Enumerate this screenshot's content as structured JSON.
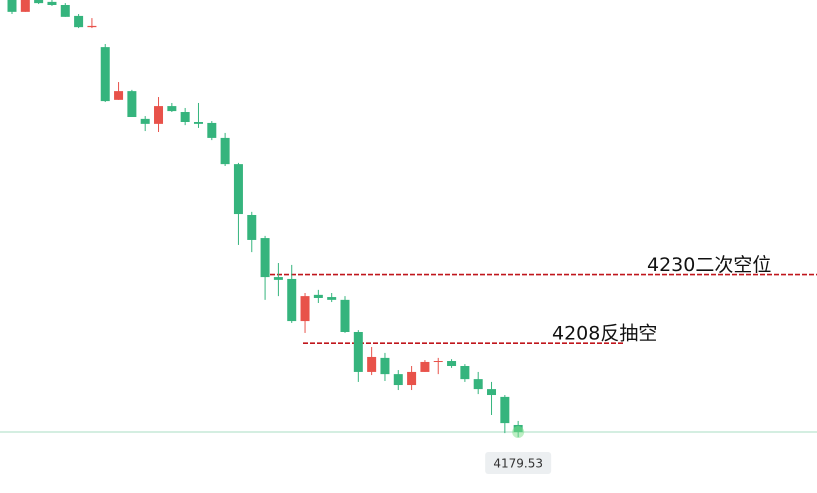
{
  "chart_data": {
    "type": "candlestick",
    "up_color": "#e8524a",
    "down_color": "#35b47d",
    "ylim": [
      4160,
      4318
    ],
    "open": [
      4318,
      4314.2,
      4318,
      4317.4,
      4316.4,
      4312.9,
      4309.3,
      4302.9,
      4286,
      4288.8,
      4279.9,
      4278.3,
      4284,
      4282.1,
      4278.9,
      4278.6,
      4273.8,
      4265.4,
      4249.1,
      4241.7,
      4229.2,
      4228.6,
      4215.1,
      4223.5,
      4222.8,
      4221.9,
      4211.6,
      4198.8,
      4203.3,
      4198.1,
      4194.6,
      4198.8,
      4202,
      4202.3,
      4200.7,
      4196.5,
      4193.3,
      4190.8,
      4181.8
    ],
    "high": [
      4318,
      4318,
      4318,
      4318,
      4317,
      4313.5,
      4312.2,
      4303.9,
      4291.7,
      4289.2,
      4280.8,
      4286.9,
      4285,
      4283.4,
      4285,
      4279.2,
      4275.4,
      4265.8,
      4250.1,
      4242.4,
      4233.7,
      4233.1,
      4224.1,
      4225.1,
      4224.1,
      4223.1,
      4212.2,
      4206.8,
      4204.9,
      4199.4,
      4200.7,
      4202.6,
      4203.3,
      4202.9,
      4201.3,
      4198.8,
      4195.6,
      4191.4,
      4183.1
    ],
    "low": [
      4313.5,
      4314.2,
      4316.7,
      4316.1,
      4312.6,
      4309,
      4309,
      4285.3,
      4286,
      4280.5,
      4276,
      4275.7,
      4282.1,
      4277.9,
      4277,
      4273.1,
      4264.8,
      4239.5,
      4237.2,
      4221.9,
      4223.1,
      4214.5,
      4211.3,
      4220.9,
      4221.2,
      4211.3,
      4195.6,
      4197.8,
      4195.9,
      4193,
      4193,
      4198.8,
      4198.1,
      4200.1,
      4195.6,
      4191.7,
      4185,
      4179.2,
      4177.9
    ],
    "close": [
      4314.2,
      4318,
      4317,
      4316.4,
      4312.6,
      4309.3,
      4309.7,
      4285.6,
      4288.8,
      4280.5,
      4278.3,
      4284,
      4282.4,
      4278.9,
      4278.3,
      4273.8,
      4265.4,
      4249.4,
      4241.1,
      4229.2,
      4228.3,
      4215.1,
      4223.1,
      4222.5,
      4221.9,
      4211.6,
      4198.8,
      4203.6,
      4198.1,
      4194.6,
      4198.8,
      4202,
      4202.3,
      4200.7,
      4196.5,
      4193.3,
      4191.4,
      4182.4,
      4179.53
    ],
    "last_price": 4179.53,
    "annotations": [
      {
        "value": 4230,
        "label": "4230二次空位",
        "color": "#c0161c"
      },
      {
        "value": 4208,
        "label": "4208反抽空",
        "color": "#c0161c"
      }
    ]
  }
}
